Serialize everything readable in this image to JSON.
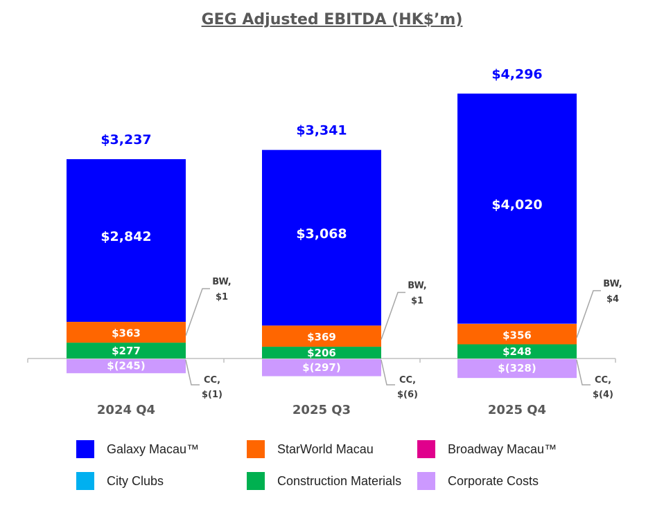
{
  "chart_data": {
    "type": "bar",
    "stacked": true,
    "title": "GEG Adjusted EBITDA (HK$’m)",
    "categories": [
      "2024 Q4",
      "2025 Q3",
      "2025 Q4"
    ],
    "totals": [
      3237,
      3341,
      4296
    ],
    "total_labels": [
      "$3,237",
      "$3,341",
      "$4,296"
    ],
    "series": [
      {
        "name": "Galaxy Macau™",
        "color": "#0000FF",
        "values": [
          2842,
          3068,
          4020
        ],
        "labels": [
          "$2,842",
          "$3,068",
          "$4,020"
        ]
      },
      {
        "name": "StarWorld Macau",
        "color": "#FF6600",
        "values": [
          363,
          369,
          356
        ],
        "labels": [
          "$363",
          "$369",
          "$356"
        ]
      },
      {
        "name": "Broadway Macau™",
        "color": "#E0008C",
        "values": [
          1,
          1,
          4
        ],
        "labels": [
          "BW,\n$1",
          "BW,\n$1",
          "BW,\n$4"
        ]
      },
      {
        "name": "City Clubs",
        "color": "#00B0F0",
        "values": [
          -1,
          -6,
          -4
        ],
        "labels": [
          "CC,\n$(1)",
          "CC,\n$(6)",
          "CC,\n$(4)"
        ]
      },
      {
        "name": "Construction Materials",
        "color": "#00B050",
        "values": [
          277,
          206,
          248
        ],
        "labels": [
          "$277",
          "$206",
          "$248"
        ]
      },
      {
        "name": "Corporate Costs",
        "color": "#CC99FF",
        "values": [
          -245,
          -297,
          -328
        ],
        "labels": [
          "$(245)",
          "$(297)",
          "$(328)"
        ]
      }
    ],
    "legend_position": "bottom",
    "grid": false
  }
}
